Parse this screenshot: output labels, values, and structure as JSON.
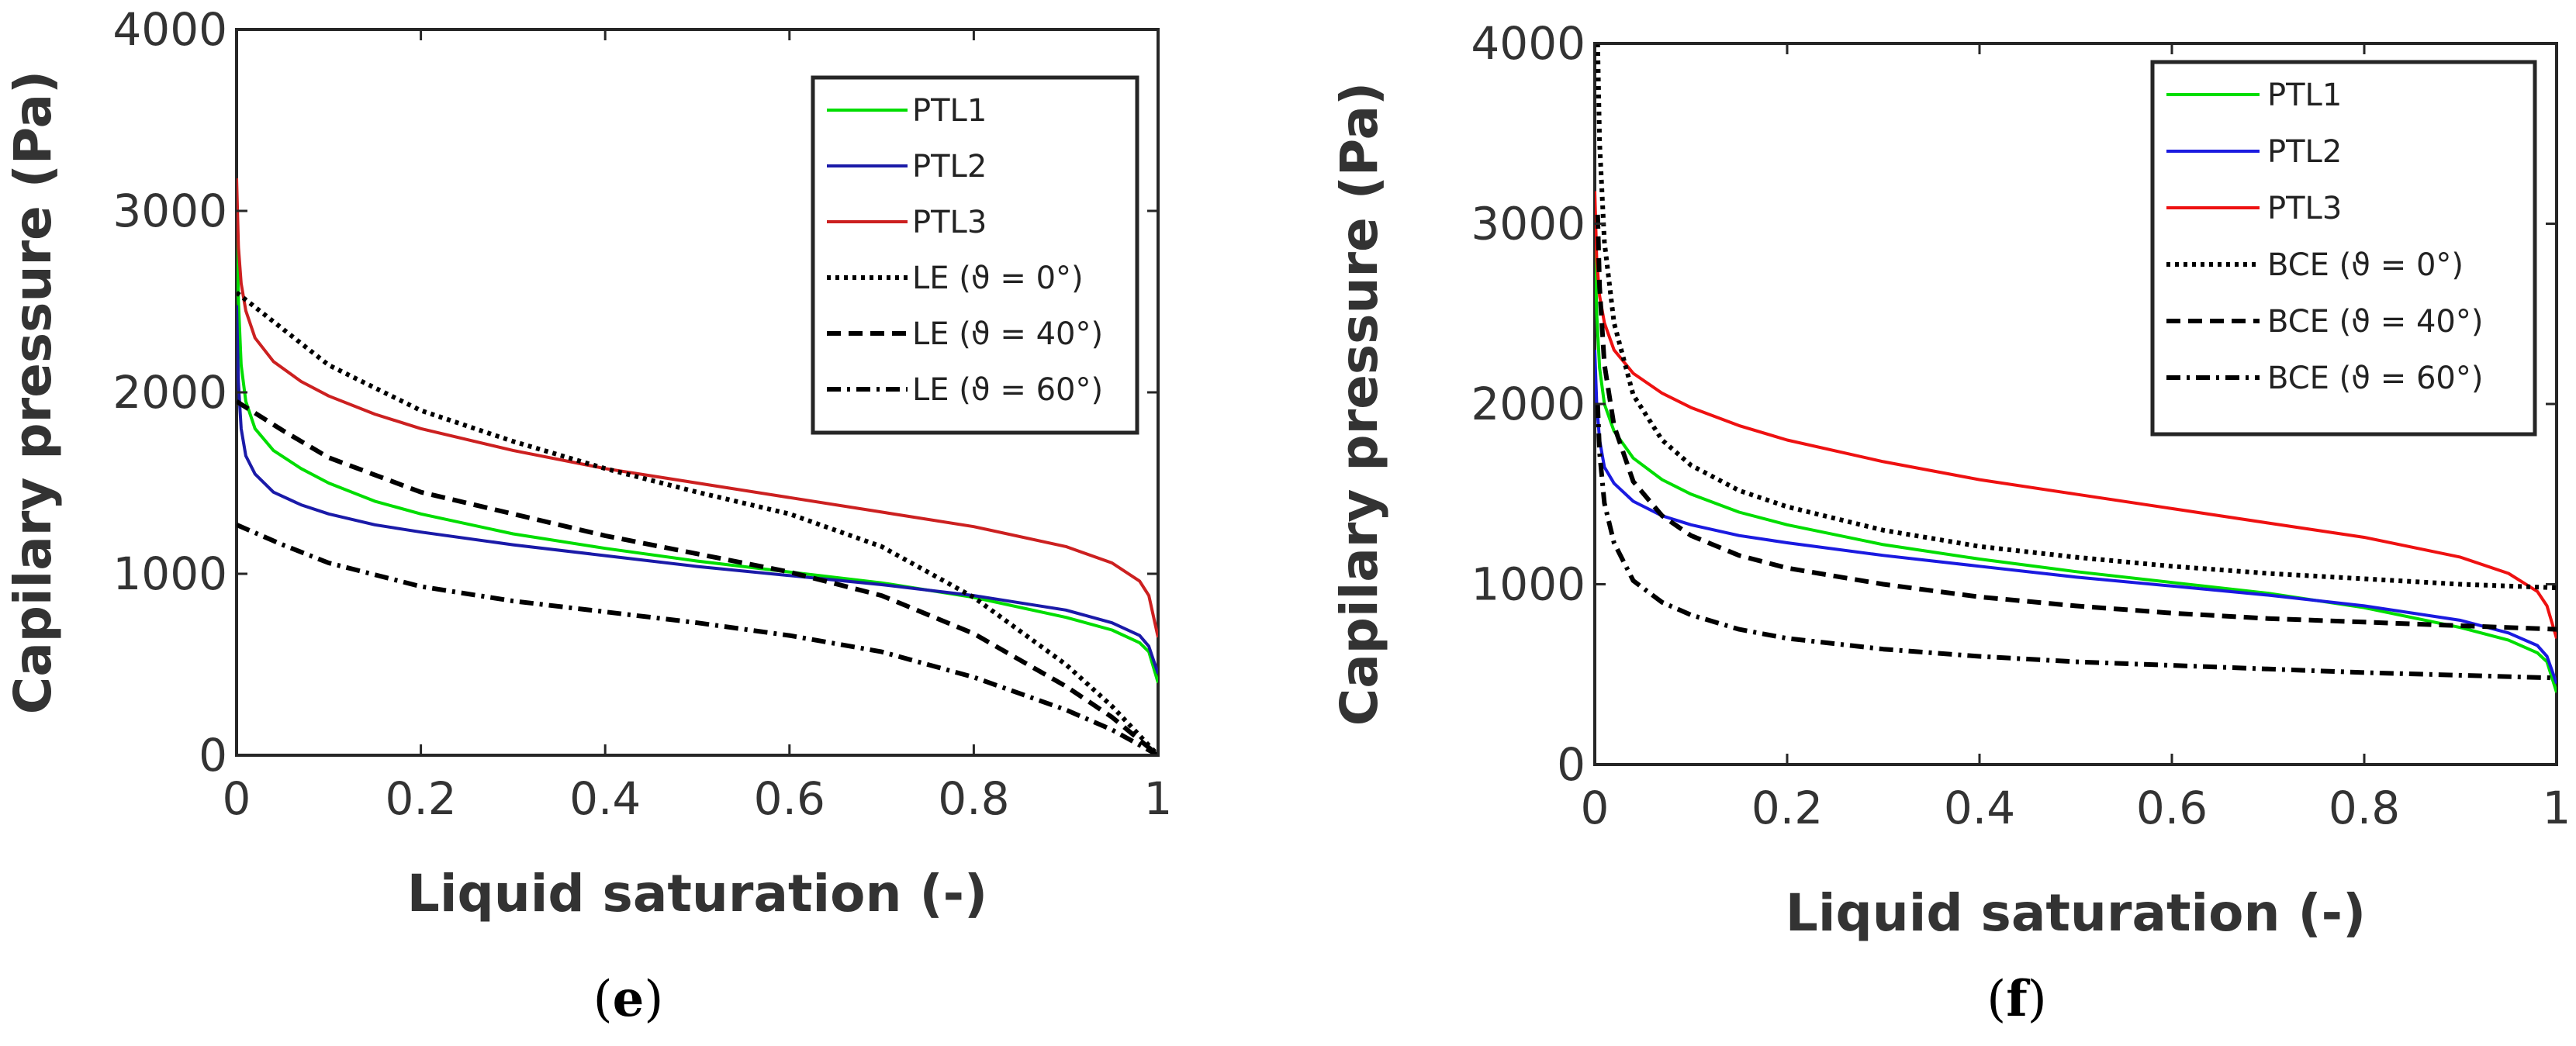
{
  "chart_data": [
    {
      "type": "line",
      "panel_label": "e",
      "xlabel": "Liquid saturation (-)",
      "ylabel": "Capilary pressure (Pa)",
      "xlim": [
        0,
        1
      ],
      "ylim": [
        0,
        4000
      ],
      "xticks": [
        0,
        0.2,
        0.4,
        0.6,
        0.8,
        1
      ],
      "xtick_labels": [
        "0",
        "0.2",
        "0.4",
        "0.6",
        "0.8",
        "1"
      ],
      "yticks": [
        0,
        1000,
        2000,
        3000,
        4000
      ],
      "ytick_labels": [
        "0",
        "1000",
        "2000",
        "3000",
        "4000"
      ],
      "legend_position": "top-right",
      "series": [
        {
          "name": "PTL1",
          "color": "#00dd00",
          "dash": "solid",
          "x": [
            0,
            0.002,
            0.005,
            0.01,
            0.02,
            0.04,
            0.07,
            0.1,
            0.15,
            0.2,
            0.3,
            0.4,
            0.5,
            0.6,
            0.7,
            0.8,
            0.9,
            0.95,
            0.98,
            0.99,
            1.0
          ],
          "y": [
            2950,
            2500,
            2150,
            1950,
            1800,
            1680,
            1580,
            1500,
            1400,
            1330,
            1220,
            1140,
            1070,
            1010,
            950,
            870,
            760,
            690,
            620,
            570,
            400
          ]
        },
        {
          "name": "PTL2",
          "color": "#1a1aa8",
          "dash": "solid",
          "x": [
            0,
            0.002,
            0.005,
            0.01,
            0.02,
            0.04,
            0.07,
            0.1,
            0.15,
            0.2,
            0.3,
            0.4,
            0.5,
            0.6,
            0.7,
            0.8,
            0.9,
            0.95,
            0.98,
            0.99,
            1.0
          ],
          "y": [
            2480,
            2050,
            1800,
            1650,
            1550,
            1450,
            1380,
            1330,
            1270,
            1230,
            1160,
            1100,
            1040,
            990,
            940,
            880,
            800,
            730,
            660,
            600,
            450
          ]
        },
        {
          "name": "PTL3",
          "color": "#cc2020",
          "dash": "solid",
          "x": [
            0,
            0.002,
            0.005,
            0.01,
            0.02,
            0.04,
            0.07,
            0.1,
            0.15,
            0.2,
            0.3,
            0.4,
            0.5,
            0.6,
            0.7,
            0.8,
            0.9,
            0.95,
            0.98,
            0.99,
            1.0
          ],
          "y": [
            3180,
            2800,
            2600,
            2450,
            2300,
            2170,
            2060,
            1980,
            1880,
            1800,
            1680,
            1580,
            1500,
            1420,
            1340,
            1260,
            1150,
            1060,
            960,
            880,
            650
          ]
        },
        {
          "name": "LE (ϑ = 0°)",
          "color": "#000000",
          "dash": "dotted",
          "x": [
            0,
            0.05,
            0.1,
            0.2,
            0.3,
            0.4,
            0.5,
            0.6,
            0.7,
            0.8,
            0.9,
            0.95,
            1.0
          ],
          "y": [
            2550,
            2350,
            2150,
            1900,
            1730,
            1580,
            1450,
            1330,
            1150,
            870,
            500,
            270,
            0
          ]
        },
        {
          "name": "LE (ϑ = 40°)",
          "color": "#000000",
          "dash": "dashed",
          "x": [
            0,
            0.05,
            0.1,
            0.2,
            0.3,
            0.4,
            0.5,
            0.6,
            0.7,
            0.8,
            0.9,
            0.95,
            1.0
          ],
          "y": [
            1950,
            1790,
            1640,
            1450,
            1330,
            1210,
            1110,
            1010,
            880,
            670,
            380,
            210,
            0
          ]
        },
        {
          "name": "LE (ϑ = 60°)",
          "color": "#000000",
          "dash": "dashdot",
          "x": [
            0,
            0.05,
            0.1,
            0.2,
            0.3,
            0.4,
            0.5,
            0.6,
            0.7,
            0.8,
            0.9,
            0.95,
            1.0
          ],
          "y": [
            1270,
            1160,
            1060,
            930,
            850,
            790,
            730,
            660,
            570,
            430,
            250,
            140,
            0
          ]
        }
      ]
    },
    {
      "type": "line",
      "panel_label": "f",
      "xlabel": "Liquid saturation (-)",
      "ylabel": "Capilary pressure (Pa)",
      "xlim": [
        0,
        1
      ],
      "ylim": [
        0,
        4000
      ],
      "xticks": [
        0,
        0.2,
        0.4,
        0.6,
        0.8,
        1
      ],
      "xtick_labels": [
        "0",
        "0.2",
        "0.4",
        "0.6",
        "0.8",
        "1"
      ],
      "yticks": [
        0,
        1000,
        2000,
        3000,
        4000
      ],
      "ytick_labels": [
        "0",
        "1000",
        "2000",
        "3000",
        "4000"
      ],
      "legend_position": "top-right",
      "series": [
        {
          "name": "PTL1",
          "color": "#00dd00",
          "dash": "solid",
          "x": [
            0,
            0.002,
            0.005,
            0.01,
            0.02,
            0.04,
            0.07,
            0.1,
            0.15,
            0.2,
            0.3,
            0.4,
            0.5,
            0.6,
            0.7,
            0.8,
            0.9,
            0.95,
            0.98,
            0.99,
            1.0
          ],
          "y": [
            2950,
            2500,
            2200,
            2000,
            1850,
            1700,
            1580,
            1500,
            1400,
            1330,
            1220,
            1140,
            1070,
            1010,
            950,
            870,
            760,
            690,
            620,
            570,
            400
          ]
        },
        {
          "name": "PTL2",
          "color": "#1a1ae0",
          "dash": "solid",
          "x": [
            0,
            0.002,
            0.005,
            0.01,
            0.02,
            0.04,
            0.07,
            0.1,
            0.15,
            0.2,
            0.3,
            0.4,
            0.5,
            0.6,
            0.7,
            0.8,
            0.9,
            0.95,
            0.98,
            0.99,
            1.0
          ],
          "y": [
            2300,
            2000,
            1800,
            1650,
            1560,
            1460,
            1380,
            1330,
            1270,
            1230,
            1160,
            1100,
            1040,
            990,
            940,
            880,
            800,
            730,
            660,
            600,
            450
          ]
        },
        {
          "name": "PTL3",
          "color": "#ee1111",
          "dash": "solid",
          "x": [
            0,
            0.002,
            0.005,
            0.01,
            0.02,
            0.04,
            0.07,
            0.1,
            0.15,
            0.2,
            0.3,
            0.4,
            0.5,
            0.6,
            0.7,
            0.8,
            0.9,
            0.95,
            0.98,
            0.99,
            1.0
          ],
          "y": [
            3180,
            2800,
            2600,
            2450,
            2300,
            2170,
            2060,
            1980,
            1880,
            1800,
            1680,
            1580,
            1500,
            1420,
            1340,
            1260,
            1150,
            1060,
            960,
            880,
            700
          ]
        },
        {
          "name": "BCE (ϑ = 0°)",
          "color": "#000000",
          "dash": "dotted",
          "x": [
            0.003,
            0.005,
            0.01,
            0.02,
            0.04,
            0.07,
            0.1,
            0.15,
            0.2,
            0.3,
            0.4,
            0.5,
            0.6,
            0.7,
            0.8,
            0.9,
            1.0
          ],
          "y": [
            4000,
            3450,
            2900,
            2450,
            2050,
            1800,
            1660,
            1520,
            1430,
            1300,
            1210,
            1150,
            1100,
            1060,
            1030,
            1000,
            980
          ]
        },
        {
          "name": "BCE (ϑ  = 40°)",
          "color": "#000000",
          "dash": "dashed",
          "x": [
            0.003,
            0.005,
            0.01,
            0.02,
            0.04,
            0.07,
            0.1,
            0.15,
            0.2,
            0.3,
            0.4,
            0.5,
            0.6,
            0.7,
            0.8,
            0.9,
            1.0
          ],
          "y": [
            3050,
            2650,
            2220,
            1880,
            1570,
            1380,
            1270,
            1160,
            1090,
            1000,
            930,
            880,
            840,
            810,
            790,
            770,
            750
          ]
        },
        {
          "name": "BCE (ϑ  = 60°)",
          "color": "#000000",
          "dash": "dashdot",
          "x": [
            0.003,
            0.005,
            0.01,
            0.02,
            0.04,
            0.07,
            0.1,
            0.15,
            0.2,
            0.3,
            0.4,
            0.5,
            0.6,
            0.7,
            0.8,
            0.9,
            1.0
          ],
          "y": [
            2000,
            1730,
            1450,
            1230,
            1020,
            900,
            830,
            750,
            700,
            640,
            600,
            570,
            550,
            530,
            510,
            495,
            480
          ]
        }
      ]
    }
  ],
  "captions": [
    "(e)",
    "(f)"
  ]
}
